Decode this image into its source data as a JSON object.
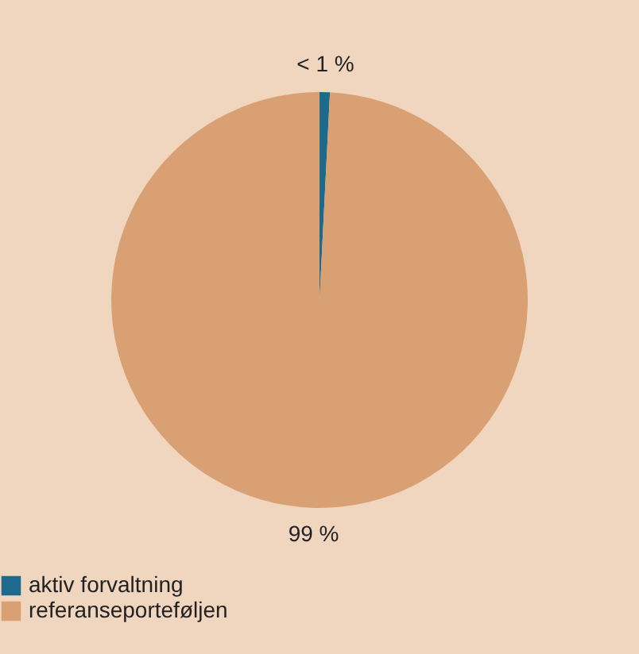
{
  "chart_data": {
    "type": "pie",
    "categories": [
      "aktiv forvaltning",
      "referanseporteføljen"
    ],
    "values": [
      0.8,
      99.2
    ],
    "colors": [
      "#1d6a8c",
      "#d9a073"
    ],
    "value_labels": [
      "< 1 %",
      "99 %"
    ],
    "legend": "bottom"
  }
}
